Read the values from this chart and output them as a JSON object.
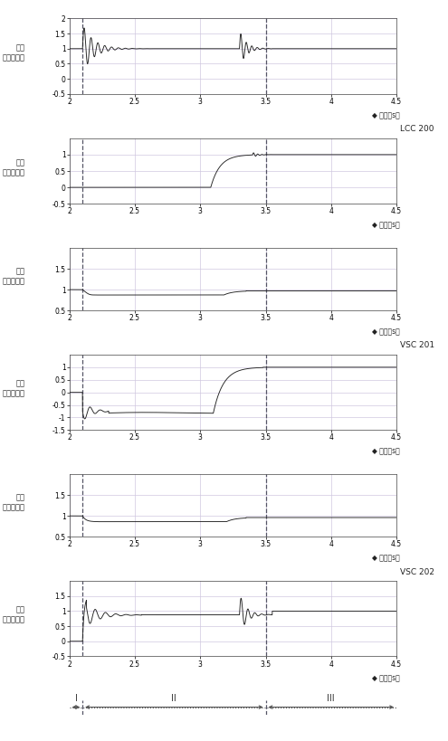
{
  "xlim": [
    2,
    4.5
  ],
  "xticks": [
    2,
    2.5,
    3,
    3.5,
    4,
    4.5
  ],
  "xtick_labels": [
    "2",
    "2.5",
    "3",
    "3.5",
    "4",
    "4.5"
  ],
  "dashed_lines": [
    2.1,
    3.5
  ],
  "bg_color": "#ffffff",
  "grid_color": "#d0c8e0",
  "dash_color": "#555566",
  "line_color": "#222222",
  "axis_label_color": "#222222",
  "xlabel": "时间（s）",
  "ylabel_voltage": "电压\n（标幺値）",
  "ylabel_current": "电流\n（标幺値）",
  "panels": [
    {
      "name": "lcc_v",
      "ylim": [
        -0.5,
        2.0
      ],
      "yticks": [
        -0.5,
        0,
        0.5,
        1.0,
        1.5,
        2.0
      ],
      "ytick_labels": [
        "-0.5",
        "0",
        "0.5",
        "1",
        "1.5",
        "2"
      ],
      "type": "voltage",
      "ylabel": "电压\n（标幺値）",
      "label": "",
      "show_label": false
    },
    {
      "name": "lcc_i",
      "ylim": [
        -0.5,
        1.5
      ],
      "yticks": [
        -0.5,
        0,
        0.5,
        1.0
      ],
      "ytick_labels": [
        "-0.5",
        "0",
        "0.5",
        "1"
      ],
      "type": "current",
      "ylabel": "电流\n（标幺値）",
      "label": "LCC 200",
      "show_label": true
    },
    {
      "name": "vsc201_v",
      "ylim": [
        0.5,
        2.0
      ],
      "yticks": [
        0.5,
        1.0,
        1.5
      ],
      "ytick_labels": [
        "0.5",
        "1",
        "1.5"
      ],
      "type": "voltage",
      "ylabel": "电压\n（标幺値）",
      "label": "",
      "show_label": false
    },
    {
      "name": "vsc201_i",
      "ylim": [
        -1.5,
        1.5
      ],
      "yticks": [
        -1.5,
        -1.0,
        -0.5,
        0,
        0.5,
        1.0
      ],
      "ytick_labels": [
        "-1.5",
        "-1",
        "-0.5",
        "0",
        "0.5",
        "1"
      ],
      "type": "current",
      "ylabel": "电流\n（标幺値）",
      "label": "VSC 201",
      "show_label": true
    },
    {
      "name": "vsc202_v",
      "ylim": [
        0.5,
        2.0
      ],
      "yticks": [
        0.5,
        1.0,
        1.5
      ],
      "ytick_labels": [
        "0.5",
        "1",
        "1.5"
      ],
      "type": "voltage",
      "ylabel": "电压\n（标幺値）",
      "label": "",
      "show_label": false
    },
    {
      "name": "vsc202_i",
      "ylim": [
        -0.5,
        2.0
      ],
      "yticks": [
        -0.5,
        0,
        0.5,
        1.0,
        1.5
      ],
      "ytick_labels": [
        "-0.5",
        "0",
        "0.5",
        "1",
        "1.5"
      ],
      "type": "current",
      "ylabel": "电流\n（标幺値）",
      "label": "VSC 202",
      "show_label": true
    }
  ],
  "zones": [
    {
      "label": "I",
      "x_start": 2.0,
      "x_end": 2.1
    },
    {
      "label": "II",
      "x_start": 2.1,
      "x_end": 3.5
    },
    {
      "label": "III",
      "x_start": 3.5,
      "x_end": 4.5
    }
  ]
}
